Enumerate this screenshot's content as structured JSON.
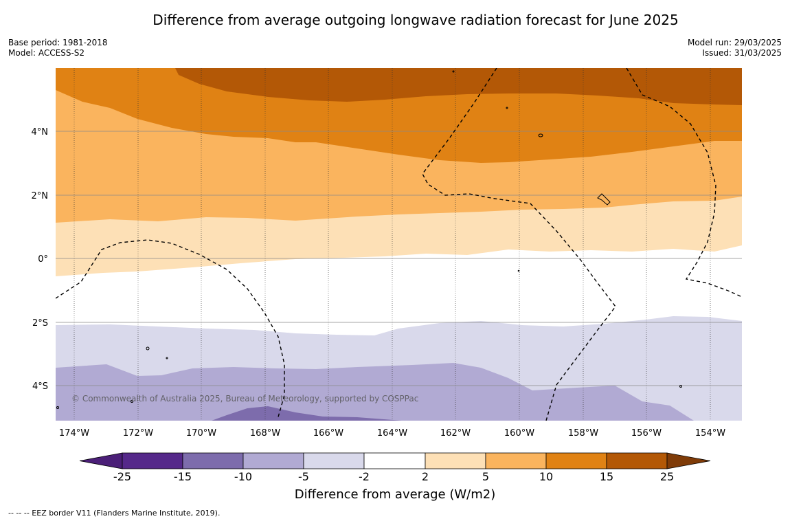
{
  "title": "Difference from average outgoing longwave radiation forecast for June 2025",
  "meta_left": {
    "base_period": "Base period: 1981-2018",
    "model": "Model: ACCESS-S2"
  },
  "meta_right": {
    "model_run": "Model run: 29/03/2025",
    "issued": "Issued: 31/03/2025"
  },
  "copyright": "© Commonwealth of Australia 2025, Bureau of Meteorology, supported by COSPPac",
  "map": {
    "lon_ticks": [
      "174°W",
      "172°W",
      "170°W",
      "168°W",
      "166°W",
      "164°W",
      "162°W",
      "160°W",
      "158°W",
      "156°W",
      "154°W"
    ],
    "lat_ticks": [
      "4°N",
      "2°N",
      "0°",
      "2°S",
      "4°S"
    ]
  },
  "colorbar": {
    "title": "Difference from average (W/m2)",
    "tick_labels": [
      "-25",
      "-15",
      "-10",
      "-5",
      "-2",
      "2",
      "5",
      "10",
      "15",
      "25"
    ],
    "colors": [
      "#4b1f78",
      "#55288a",
      "#7d6cac",
      "#b1aad3",
      "#d9d9eb",
      "#ffffff",
      "#fde0b6",
      "#fab45e",
      "#e08214",
      "#b35806",
      "#7f3b08"
    ]
  },
  "footnote": "--  --  -- EEZ border V11 (Flanders Marine Institute, 2019)."
}
